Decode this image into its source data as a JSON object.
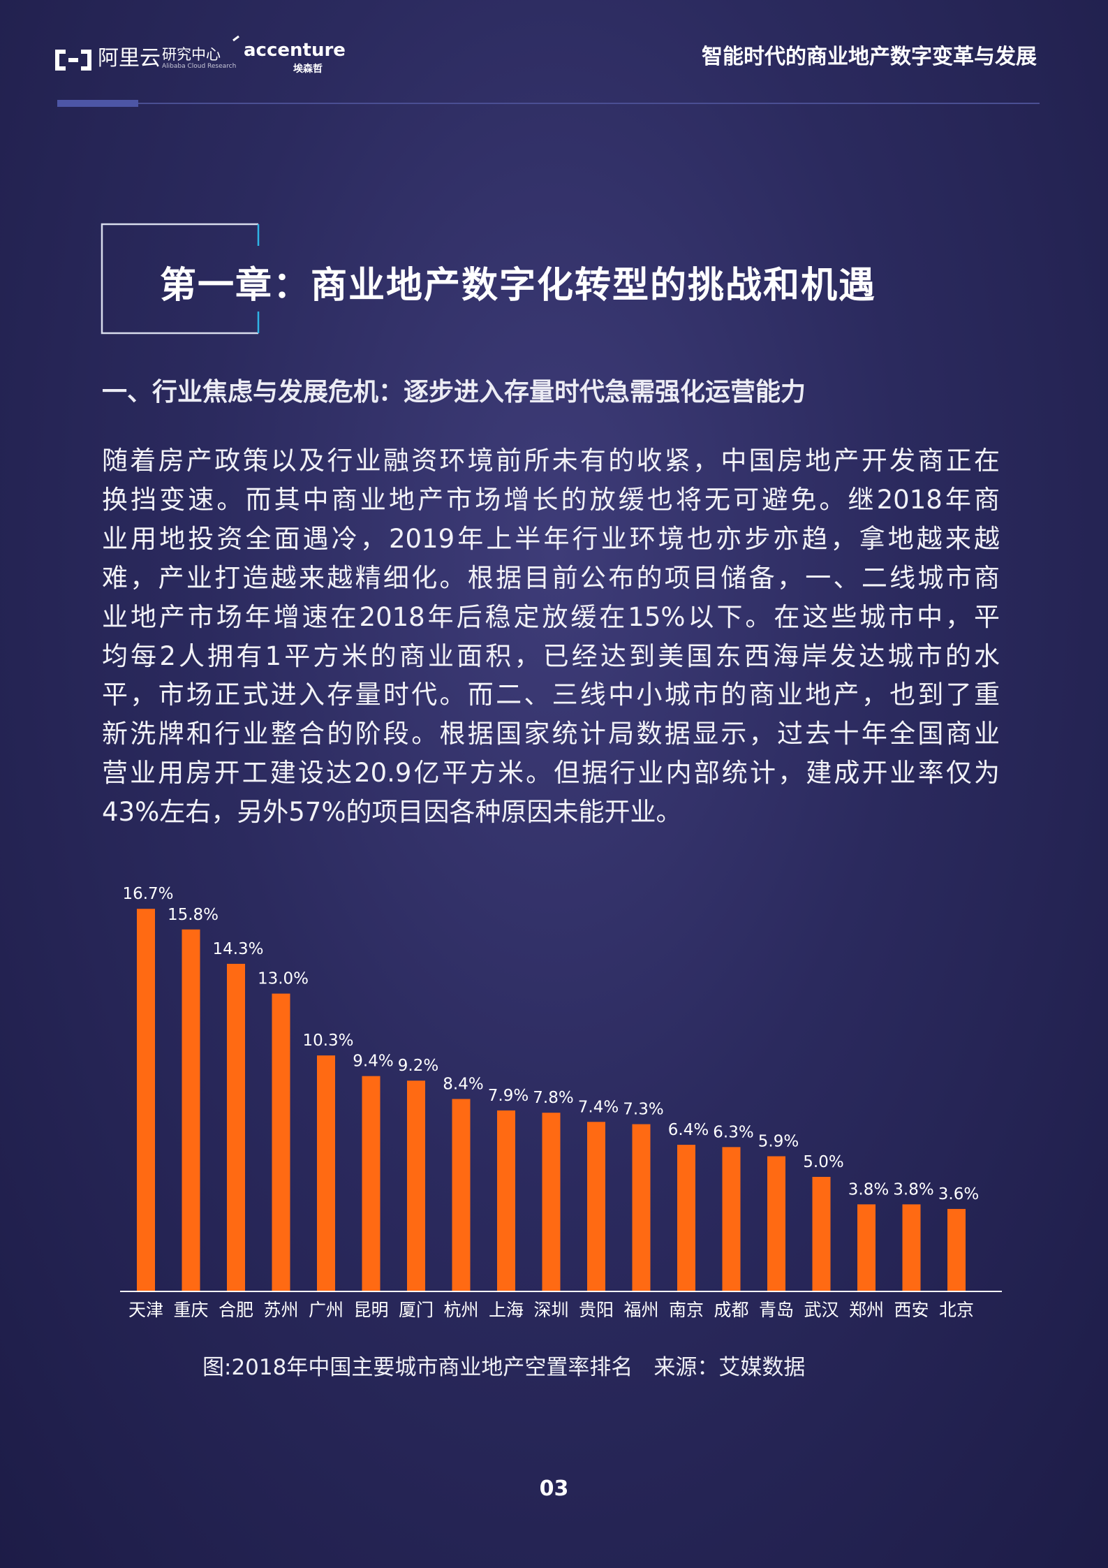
{
  "header": {
    "logo_name": "阿里云",
    "logo_unit": "研究中心",
    "logo_english": "Alibaba Cloud Research",
    "partner_name": "accenture",
    "partner_chinese": "埃森哲",
    "title": "智能时代的商业地产数字变革与发展"
  },
  "chapter_title": "第一章：商业地产数字化转型的挑战和机遇",
  "section_title": "一、行业焦虑与发展危机：逐步进入存量时代急需强化运营能力",
  "paragraph": [
    "随着房产政策以及行业融资环境前所未有的收紧，中国房地产开发商正在",
    "换挡变速。而其中商业地产市场增长的放缓也将无可避免。继2018年商",
    "业用地投资全面遇冷，2019年上半年行业环境也亦步亦趋，拿地越来越",
    "难，产业打造越来越精细化。根据目前公布的项目储备，一、二线城市商",
    "业地产市场年增速在2018年后稳定放缓在15%以下。在这些城市中，平",
    "均每2人拥有1平方米的商业面积，已经达到美国东西海岸发达城市的水",
    "平，市场正式进入存量时代。而二、三线中小城市的商业地产，也到了重",
    "新洗牌和行业整合的阶段。根据国家统计局数据显示，过去十年全国商业",
    "营业用房开工建设达20.9亿平方米。但据行业内部统计，建成开业率仅为",
    "43%左右，另外57%的项目因各种原因未能开业。"
  ],
  "chart_data": {
    "type": "bar",
    "color": "#ff6a13",
    "categories": [
      "天津",
      "重庆",
      "合肥",
      "苏州",
      "广州",
      "昆明",
      "厦门",
      "杭州",
      "上海",
      "深圳",
      "贵阳",
      "福州",
      "南京",
      "成都",
      "青岛",
      "武汉",
      "郑州",
      "西安",
      "北京"
    ],
    "values": [
      16.7,
      15.8,
      14.3,
      13.0,
      10.3,
      9.4,
      9.2,
      8.4,
      7.9,
      7.8,
      7.4,
      7.3,
      6.4,
      6.3,
      5.9,
      5.0,
      3.8,
      3.8,
      3.6
    ],
    "value_labels": [
      "16.7%",
      "15.8%",
      "14.3%",
      "13.0%",
      "10.3%",
      "9.4%",
      "9.2%",
      "8.4%",
      "7.9%",
      "7.8%",
      "7.4%",
      "7.3%",
      "6.4%",
      "6.3%",
      "5.9%",
      "5.0%",
      "3.8%",
      "3.8%",
      "3.6%"
    ]
  },
  "caption": {
    "title": "图:2018年中国主要城市商业地产空置率排名",
    "source": "来源：艾媒数据"
  },
  "page_number": "03"
}
